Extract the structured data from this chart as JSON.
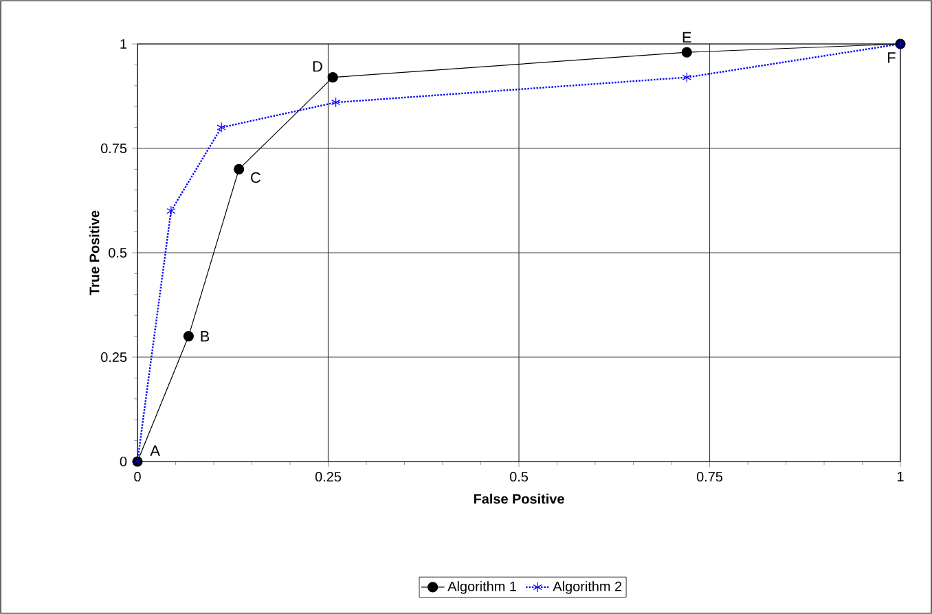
{
  "chart_data": {
    "type": "line",
    "xlabel": "False Positive",
    "ylabel": "True Positive",
    "xlim": [
      0,
      1
    ],
    "ylim": [
      0,
      1
    ],
    "xticks": [
      0,
      0.25,
      0.5,
      0.75,
      1
    ],
    "yticks": [
      0,
      0.25,
      0.5,
      0.75,
      1
    ],
    "grid": true,
    "legend": "bottom",
    "series": [
      {
        "name": "Algorithm 1",
        "color": "#000000",
        "marker": "circle",
        "line_style": "solid",
        "x": [
          0,
          0.067,
          0.133,
          0.256,
          0.72,
          1
        ],
        "values": [
          0,
          0.3,
          0.7,
          0.92,
          0.98,
          1
        ]
      },
      {
        "name": "Algorithm 2",
        "color": "#0000ff",
        "marker": "cross",
        "line_style": "dotted",
        "x": [
          0,
          0.044,
          0.11,
          0.26,
          0.72,
          1
        ],
        "values": [
          0,
          0.6,
          0.8,
          0.86,
          0.92,
          1
        ]
      }
    ],
    "annotations": [
      {
        "text": "A",
        "x": 0,
        "y": 0
      },
      {
        "text": "B",
        "x": 0.067,
        "y": 0.3
      },
      {
        "text": "C",
        "x": 0.133,
        "y": 0.7
      },
      {
        "text": "D",
        "x": 0.256,
        "y": 0.92
      },
      {
        "text": "E",
        "x": 0.72,
        "y": 0.98
      },
      {
        "text": "F",
        "x": 1,
        "y": 1
      }
    ]
  }
}
